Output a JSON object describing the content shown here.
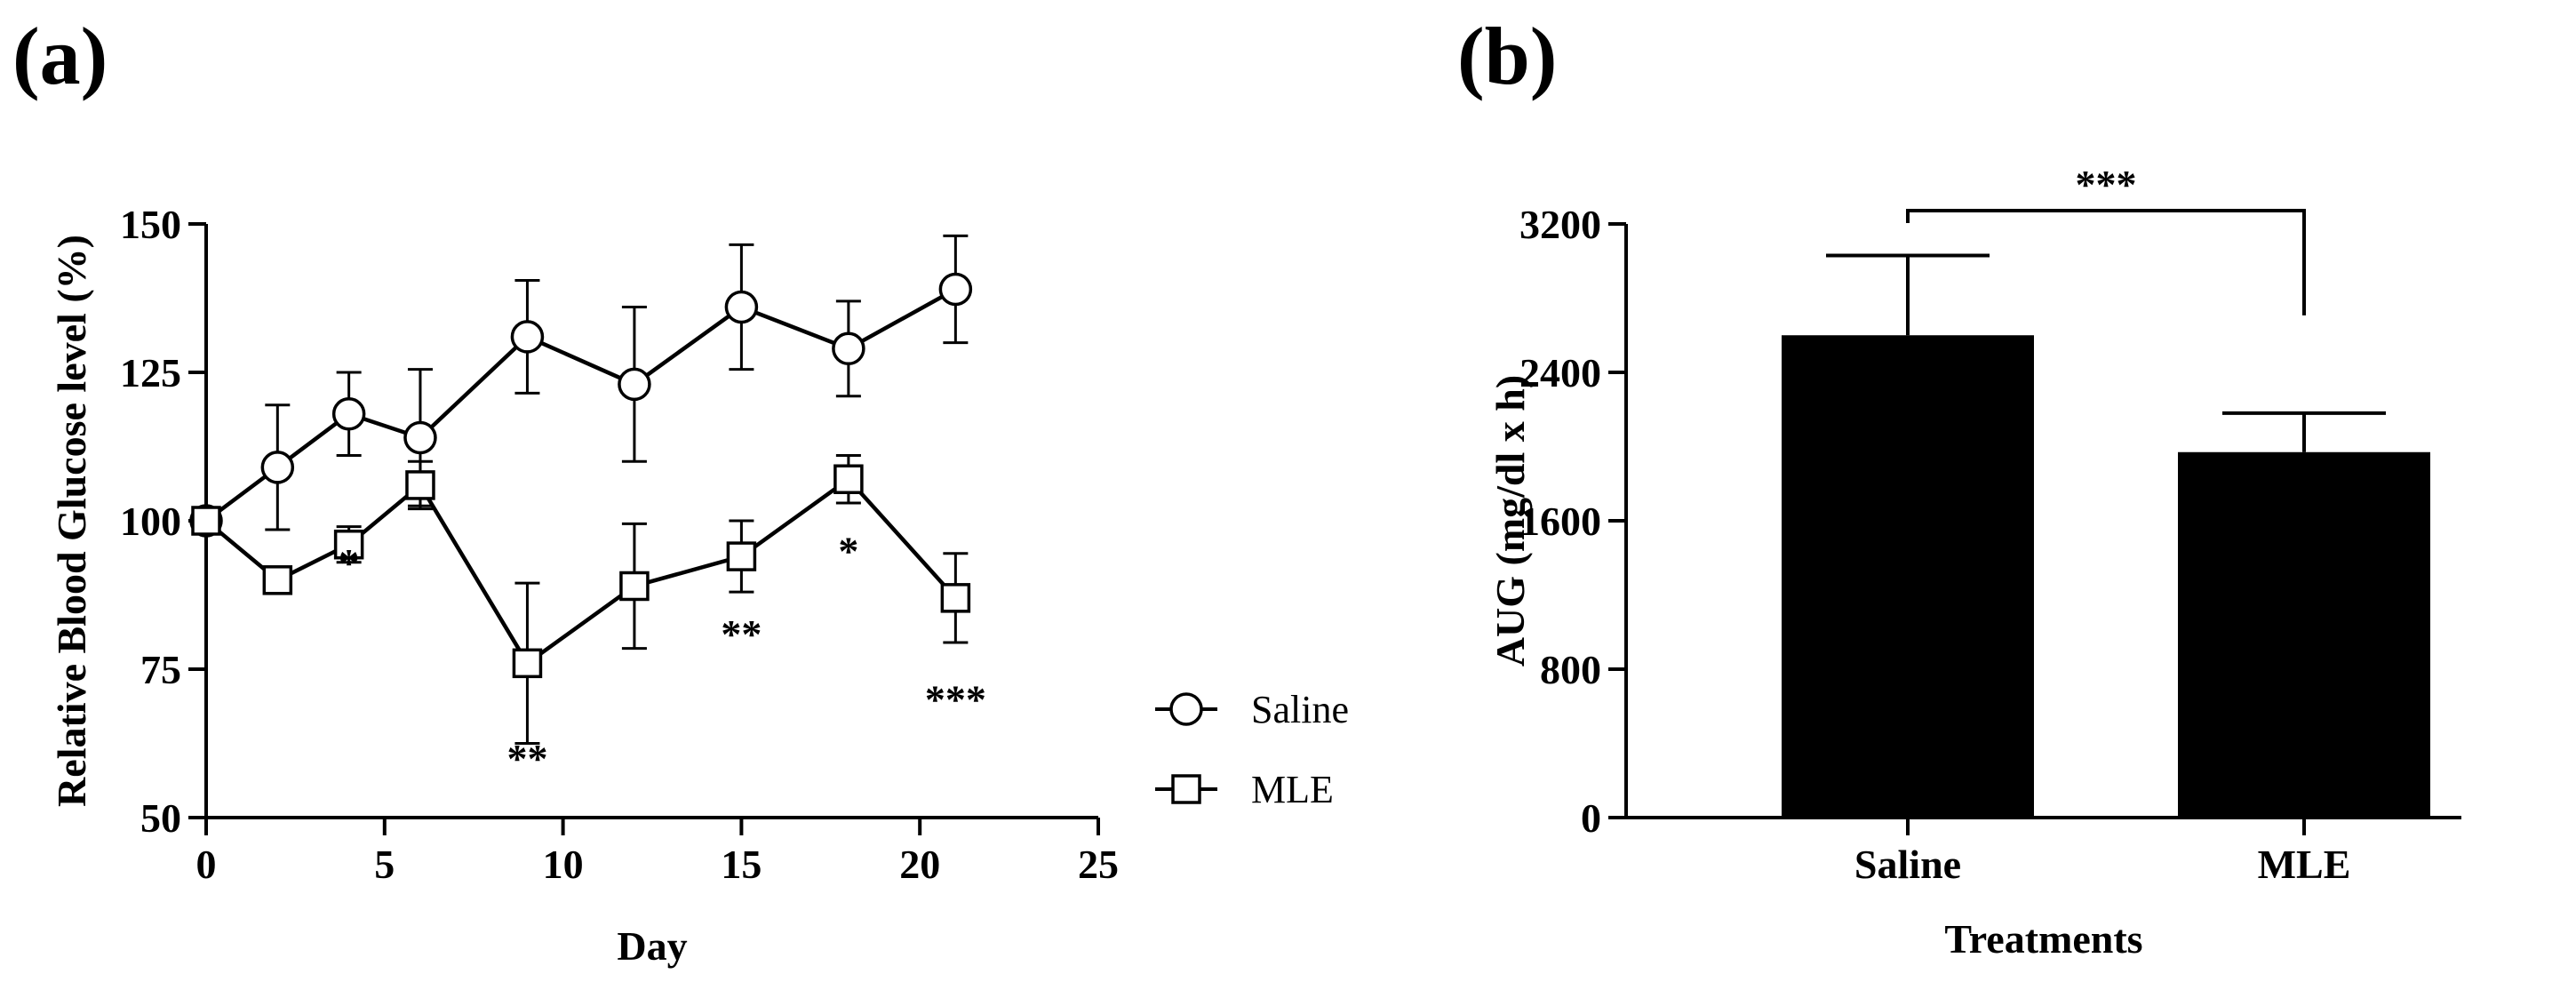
{
  "panel_a": {
    "label": "(a)"
  },
  "panel_b": {
    "label": "(b)"
  },
  "chart_data": [
    {
      "type": "line",
      "xlabel": "Day",
      "ylabel": "Relative Blood Glucose level (%)",
      "xlim": [
        0,
        25
      ],
      "ylim": [
        50,
        150
      ],
      "xticks": [
        0,
        5,
        10,
        15,
        20,
        25
      ],
      "yticks": [
        50,
        75,
        100,
        125,
        150
      ],
      "grid": false,
      "legend_position": "right",
      "series": [
        {
          "name": "Saline",
          "marker": "circle",
          "x": [
            0,
            2,
            4,
            6,
            9,
            12,
            15,
            18,
            21
          ],
          "y": [
            100,
            109,
            118,
            114,
            131,
            123,
            136,
            129,
            139
          ],
          "error": [
            0,
            10.5,
            7,
            11.5,
            9.5,
            13,
            10.5,
            8,
            9
          ]
        },
        {
          "name": "MLE",
          "marker": "square",
          "x": [
            0,
            2,
            4,
            6,
            9,
            12,
            15,
            18,
            21
          ],
          "y": [
            100,
            90,
            96,
            106,
            76,
            89,
            94,
            107,
            87
          ],
          "error": [
            0,
            1.5,
            3,
            4,
            13.5,
            10.5,
            6,
            4,
            7.5
          ]
        }
      ],
      "annotations": [
        {
          "x": 4,
          "y": 93,
          "text": "*"
        },
        {
          "x": 9,
          "y": 60,
          "text": "**"
        },
        {
          "x": 15,
          "y": 81,
          "text": "**"
        },
        {
          "x": 18,
          "y": 95,
          "text": "*"
        },
        {
          "x": 21,
          "y": 70,
          "text": "***"
        }
      ]
    },
    {
      "type": "bar",
      "xlabel": "Treatments",
      "ylabel": "AUG (mg/dl x h)",
      "categories": [
        "Saline",
        "MLE"
      ],
      "values": [
        2600,
        1970
      ],
      "error": [
        430,
        210
      ],
      "ylim": [
        0,
        3200
      ],
      "yticks": [
        0,
        800,
        1600,
        2400,
        3200
      ],
      "grid": false,
      "bar_color": "#000000",
      "significance": {
        "between": [
          "Saline",
          "MLE"
        ],
        "text": "***"
      }
    }
  ]
}
